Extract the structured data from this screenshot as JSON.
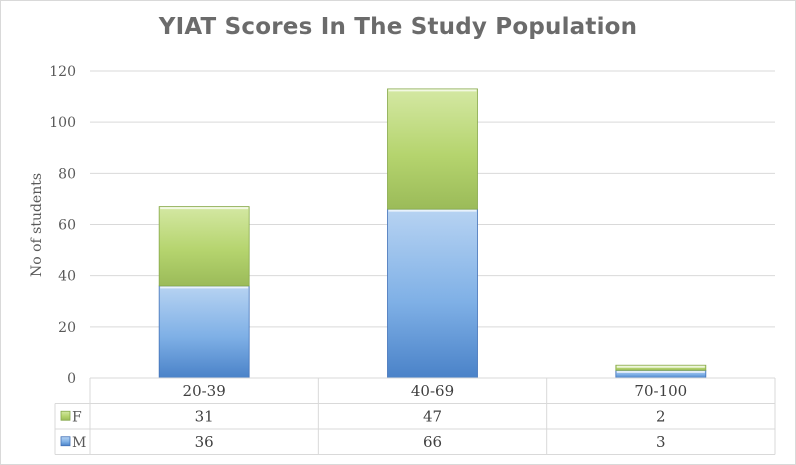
{
  "chart_data": {
    "type": "bar",
    "stacked": true,
    "title": "YIAT Scores In The Study Population",
    "xlabel": "",
    "ylabel": "No of students",
    "ylim": [
      0,
      120
    ],
    "yticks": [
      0,
      20,
      40,
      60,
      80,
      100,
      120
    ],
    "grid": true,
    "legend": "data-table",
    "categories": [
      "20-39",
      "40-69",
      "70-100"
    ],
    "series": [
      {
        "name": "M",
        "values": [
          36,
          66,
          3
        ],
        "color": "#5b9bd5"
      },
      {
        "name": "F",
        "values": [
          31,
          47,
          2
        ],
        "color": "#9bbb59"
      }
    ]
  }
}
